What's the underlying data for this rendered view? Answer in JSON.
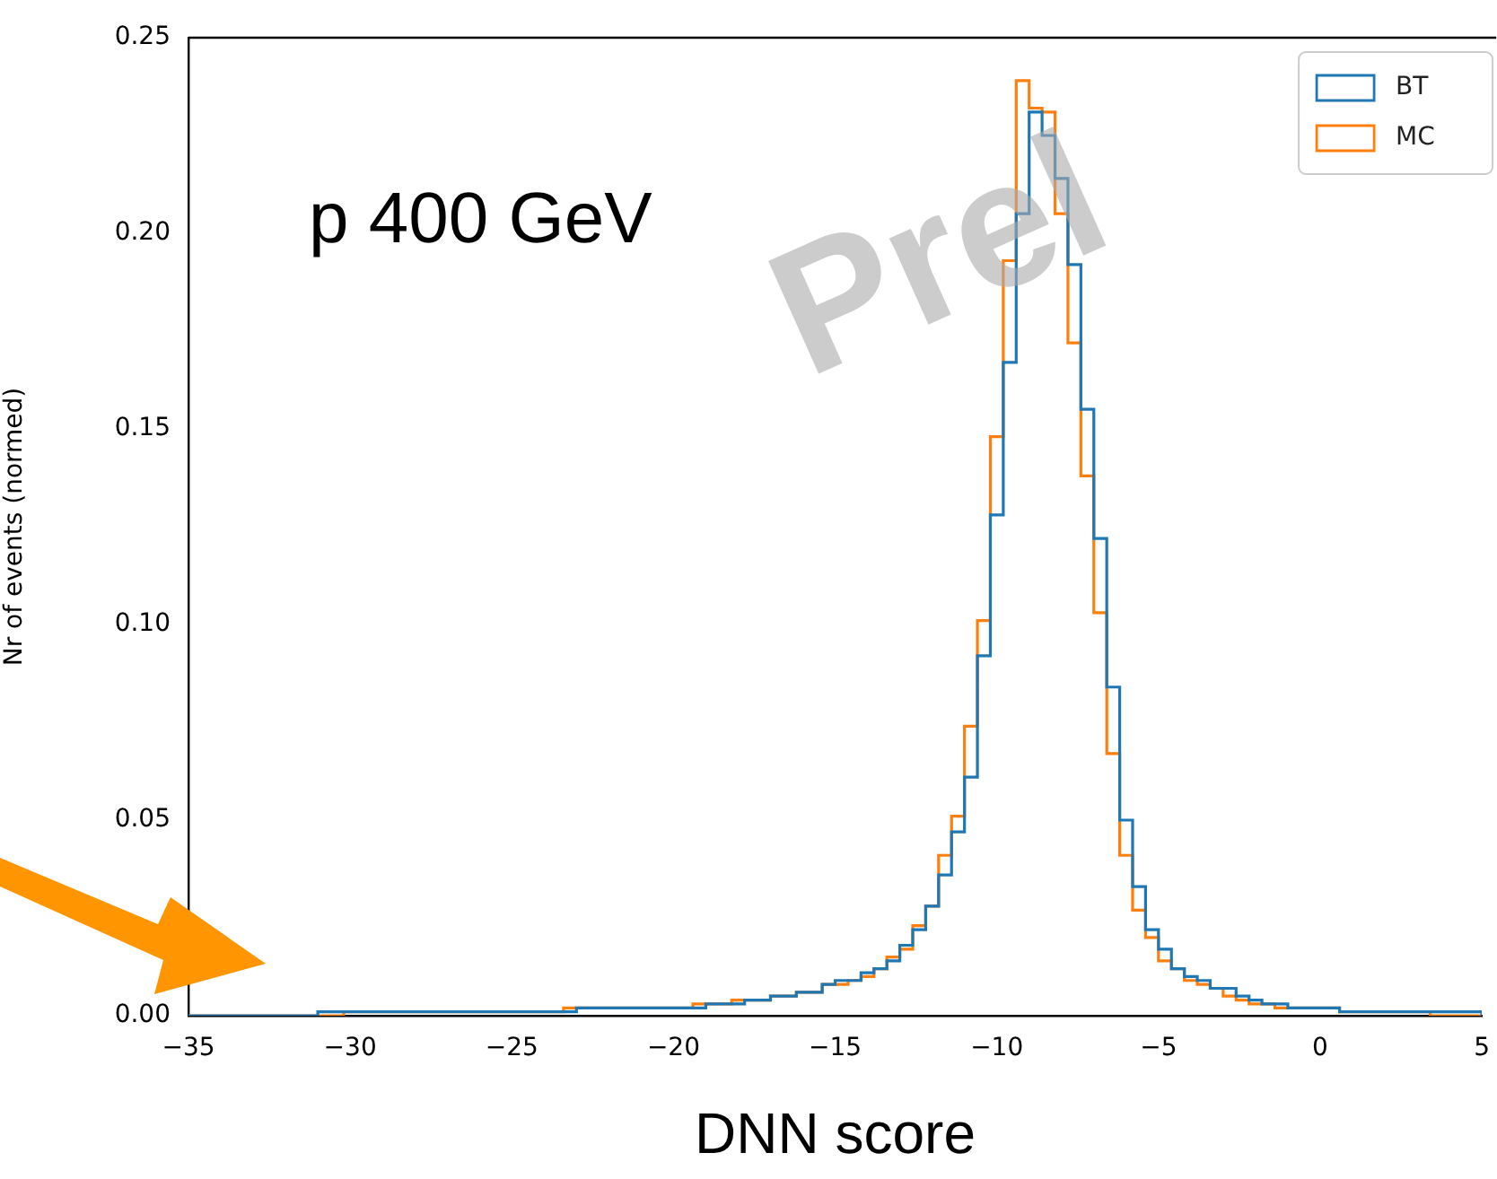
{
  "chart_data": {
    "type": "histogram",
    "xlabel": "DNN score",
    "ylabel": "Nr of events (normed)",
    "annotations": [
      "p 400 GeV",
      "Prel"
    ],
    "bins": [
      -35,
      -34.6,
      -34.2,
      -33.8,
      -33.4,
      -33,
      -32.6,
      -32.2,
      -31.8,
      -31.4,
      -31,
      -30.6,
      -30.2,
      -29.8,
      -29.4,
      -29,
      -28.6,
      -28.2,
      -27.8,
      -27.4,
      -27,
      -26.6,
      -26.2,
      -25.8,
      -25.4,
      -25,
      -24.6,
      -24.2,
      -23.8,
      -23.4,
      -23,
      -22.6,
      -22.2,
      -21.8,
      -21.4,
      -21,
      -20.6,
      -20.2,
      -19.8,
      -19.4,
      -19,
      -18.6,
      -18.2,
      -17.8,
      -17.4,
      -17,
      -16.6,
      -16.2,
      -15.8,
      -15.4,
      -15,
      -14.6,
      -14.2,
      -13.8,
      -13.4,
      -13,
      -12.6,
      -12.2,
      -11.8,
      -11.4,
      -11,
      -10.6,
      -10.2,
      -9.8,
      -9.4,
      -9,
      -8.6,
      -8.2,
      -7.8,
      -7.4,
      -7,
      -6.6,
      -6.2,
      -5.8,
      -5.4,
      -5,
      -4.6,
      -4.2,
      -3.8,
      -3.4,
      -3,
      -2.6,
      -2.2,
      -1.8,
      -1.4,
      -1,
      -0.6,
      -0.2,
      0.2,
      0.6,
      1,
      1.4,
      1.8,
      2.2,
      2.6,
      3,
      3.4,
      3.8,
      4.2,
      4.6,
      5
    ],
    "series": [
      {
        "name": "BT",
        "color": "#1f77b4",
        "values": [
          0,
          0,
          0,
          0,
          0,
          0,
          0,
          0,
          0,
          0,
          0.001,
          0.001,
          0.001,
          0.001,
          0.001,
          0.001,
          0.001,
          0.001,
          0.001,
          0.001,
          0.001,
          0.001,
          0.001,
          0.001,
          0.001,
          0.001,
          0.001,
          0.001,
          0.001,
          0.001,
          0.002,
          0.002,
          0.002,
          0.002,
          0.002,
          0.002,
          0.002,
          0.002,
          0.002,
          0.002,
          0.003,
          0.003,
          0.003,
          0.004,
          0.004,
          0.005,
          0.005,
          0.006,
          0.006,
          0.008,
          0.009,
          0.009,
          0.011,
          0.012,
          0.014,
          0.018,
          0.022,
          0.028,
          0.036,
          0.047,
          0.061,
          0.092,
          0.128,
          0.167,
          0.205,
          0.231,
          0.225,
          0.214,
          0.192,
          0.155,
          0.122,
          0.084,
          0.05,
          0.033,
          0.022,
          0.017,
          0.012,
          0.01,
          0.009,
          0.007,
          0.007,
          0.005,
          0.004,
          0.003,
          0.003,
          0.002,
          0.002,
          0.002,
          0.002,
          0.001,
          0.001,
          0.001,
          0.001,
          0.001,
          0.001,
          0.001,
          0.001,
          0.001,
          0.001,
          0.001
        ]
      },
      {
        "name": "MC",
        "color": "#ff7f0e",
        "values": [
          0,
          0,
          0,
          0,
          0,
          0,
          0,
          0,
          0,
          0,
          0,
          0,
          0.001,
          0.001,
          0.001,
          0.001,
          0.001,
          0.001,
          0.001,
          0.001,
          0.001,
          0.001,
          0.001,
          0.001,
          0.001,
          0.001,
          0.001,
          0.001,
          0.001,
          0.002,
          0.002,
          0.002,
          0.002,
          0.002,
          0.002,
          0.002,
          0.002,
          0.002,
          0.002,
          0.003,
          0.003,
          0.003,
          0.004,
          0.004,
          0.004,
          0.005,
          0.005,
          0.006,
          0.006,
          0.008,
          0.008,
          0.009,
          0.01,
          0.012,
          0.015,
          0.017,
          0.023,
          0.028,
          0.041,
          0.051,
          0.074,
          0.101,
          0.148,
          0.193,
          0.239,
          0.232,
          0.231,
          0.205,
          0.172,
          0.138,
          0.103,
          0.067,
          0.041,
          0.027,
          0.02,
          0.014,
          0.012,
          0.009,
          0.008,
          0.007,
          0.005,
          0.004,
          0.003,
          0.003,
          0.002,
          0.002,
          0.002,
          0.002,
          0.002,
          0.001,
          0.001,
          0.001,
          0.001,
          0.001,
          0.001,
          0.001,
          0,
          0,
          0,
          0
        ]
      }
    ],
    "xlim": [
      -35,
      5
    ],
    "ylim": [
      0,
      0.25
    ],
    "xticks": [
      {
        "value": -35,
        "label": "−35"
      },
      {
        "value": -30,
        "label": "−30"
      },
      {
        "value": -25,
        "label": "−25"
      },
      {
        "value": -20,
        "label": "−20"
      },
      {
        "value": -15,
        "label": "−15"
      },
      {
        "value": -10,
        "label": "−10"
      },
      {
        "value": -5,
        "label": "−5"
      },
      0,
      5
    ],
    "yticks": [
      {
        "value": 0,
        "label": "0.00"
      },
      {
        "value": 0.05,
        "label": "0.05"
      },
      {
        "value": 0.1,
        "label": "0.10"
      },
      {
        "value": 0.15,
        "label": "0.15"
      },
      {
        "value": 0.2,
        "label": "0.20"
      },
      {
        "value": 0.25,
        "label": "0.25"
      }
    ],
    "grid": false,
    "legend": "top right"
  }
}
